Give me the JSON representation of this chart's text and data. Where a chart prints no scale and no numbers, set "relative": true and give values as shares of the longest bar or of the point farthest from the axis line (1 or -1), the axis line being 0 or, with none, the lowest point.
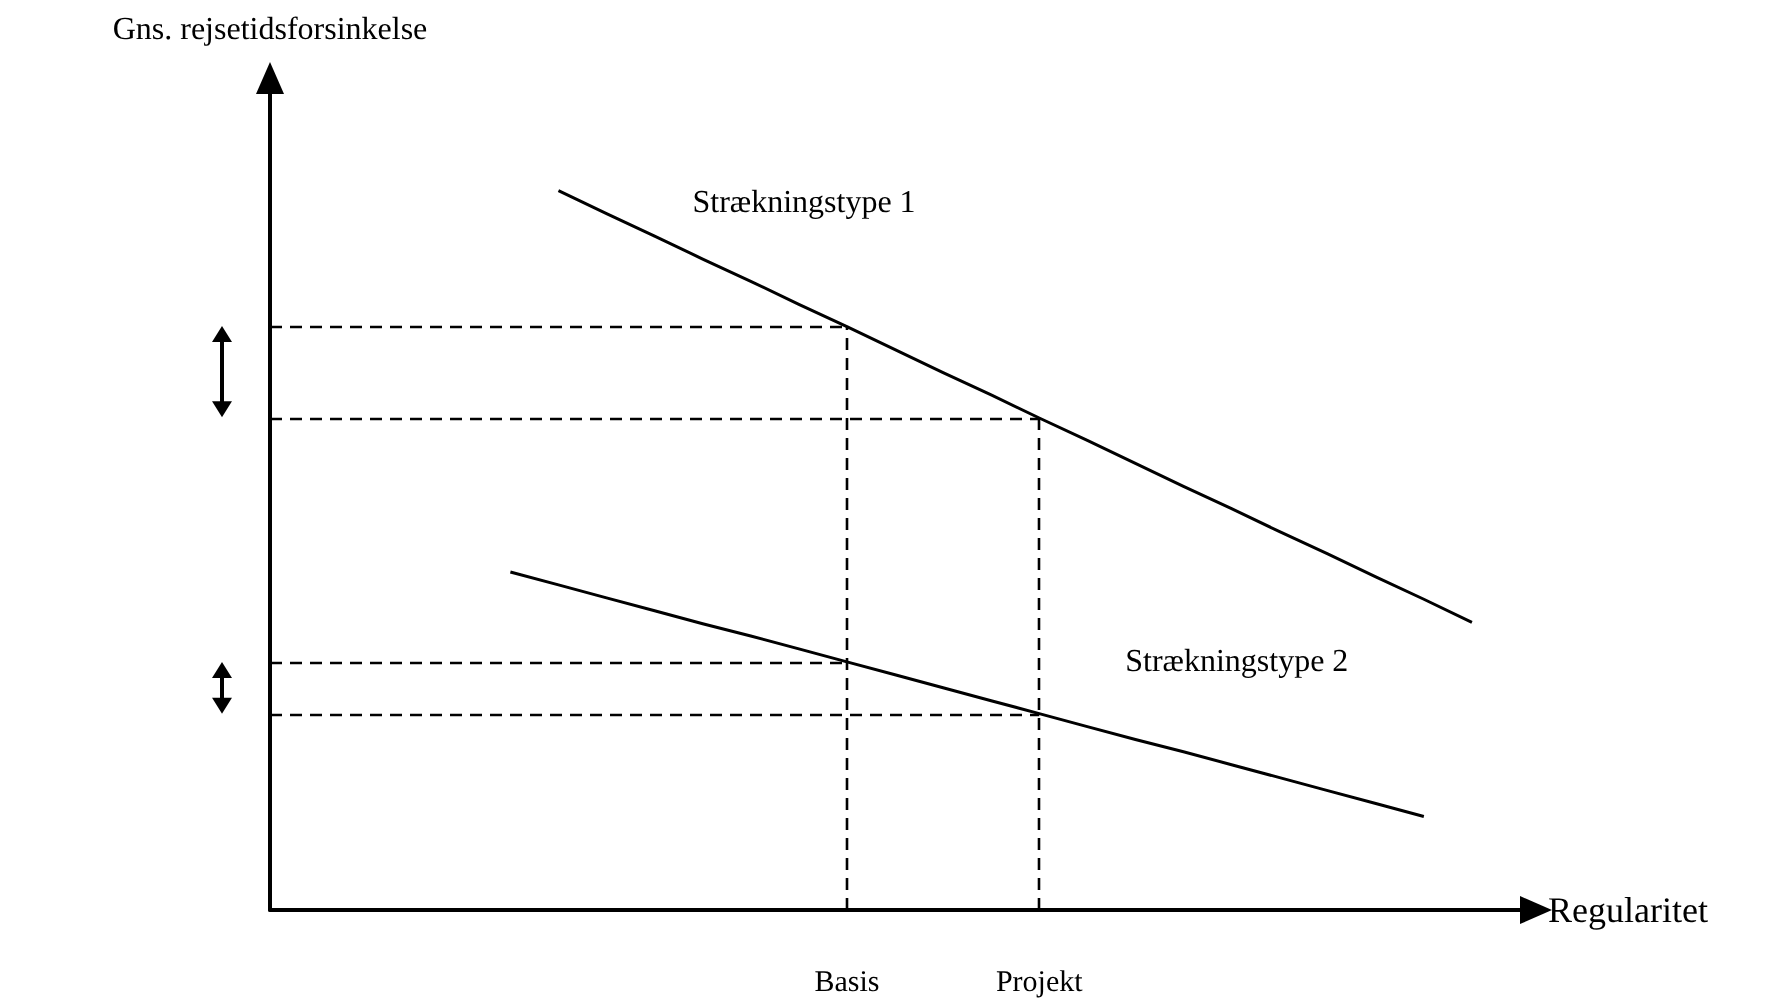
{
  "chart_data": {
    "type": "line",
    "xlabel": "Regularitet",
    "ylabel": "Gns. rejsetidsforsinkelse",
    "relative": true,
    "categories": [
      null,
      null,
      null,
      null,
      null,
      null,
      null,
      null,
      null,
      null,
      null,
      null,
      "Basis",
      null,
      null,
      null,
      "Projekt",
      null,
      null,
      null,
      null,
      null,
      null,
      null,
      null,
      null,
      null
    ],
    "grid": false,
    "legend": false,
    "marker": "none",
    "line_style": "solid",
    "series": [
      {
        "name": "Strækningstype 1",
        "color": "#000000",
        "values": [
          null,
          null,
          null,
          null,
          null,
          null,
          1,
          0.968,
          0.937,
          0.905,
          0.874,
          0.842,
          0.811,
          0.779,
          0.747,
          0.716,
          0.684,
          0.653,
          0.621,
          0.589,
          0.558,
          0.526,
          0.495,
          0.463,
          0.432,
          0.4,
          null
        ]
      },
      {
        "name": "Strækningstype 2",
        "color": "#000000",
        "values": [
          null,
          null,
          null,
          null,
          null,
          0.47,
          0.452,
          0.434,
          0.416,
          0.398,
          0.381,
          0.363,
          0.345,
          0.327,
          0.309,
          0.291,
          0.273,
          0.255,
          0.237,
          0.22,
          0.202,
          0.184,
          0.166,
          0.148,
          0.13,
          null,
          null
        ]
      }
    ],
    "ref_lines": [
      {
        "axis": "x",
        "value": "Basis",
        "color": "#000000",
        "line_style": "dashed"
      },
      {
        "axis": "x",
        "value": "Projekt",
        "color": "#000000",
        "line_style": "dashed"
      },
      {
        "axis": "y",
        "value": 0.811,
        "color": "#000000",
        "line_style": "dashed"
      },
      {
        "axis": "y",
        "value": 0.684,
        "color": "#000000",
        "line_style": "dashed"
      },
      {
        "axis": "y",
        "value": 0.345,
        "color": "#000000",
        "line_style": "dashed"
      },
      {
        "axis": "y",
        "value": 0.273,
        "color": "#000000",
        "line_style": "dashed"
      }
    ]
  }
}
